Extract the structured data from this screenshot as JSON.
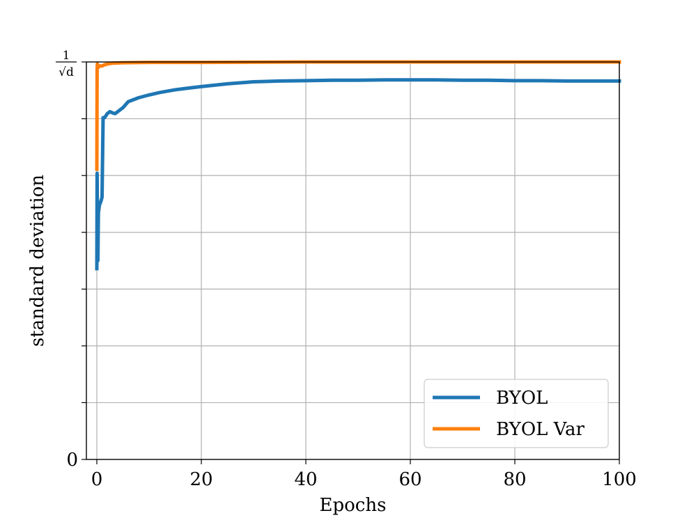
{
  "chart_data": {
    "type": "line",
    "xlabel": "Epochs",
    "ylabel": "standard deviation",
    "xlim": [
      -2,
      100
    ],
    "ylim": [
      0,
      1
    ],
    "grid": true,
    "legend_position": "lower-right",
    "x_ticks": [
      0,
      20,
      40,
      60,
      80,
      100
    ],
    "x_tick_labels": [
      "0",
      "20",
      "40",
      "60",
      "80",
      "100"
    ],
    "y_ticks": [
      0,
      0.142857,
      0.285714,
      0.428571,
      0.571429,
      0.714286,
      0.857143,
      1
    ],
    "y_tick_labels": [
      "0",
      "",
      "",
      "",
      "",
      "",
      "",
      "1/√d"
    ],
    "series": [
      {
        "name": "BYOL",
        "color": "#1f77b4",
        "x": [
          0,
          0.05,
          0.1,
          0.2,
          0.3,
          0.5,
          0.8,
          1.0,
          1.2,
          1.5,
          2,
          2.5,
          3,
          3.5,
          4,
          5,
          6,
          7,
          8,
          10,
          12,
          15,
          18,
          20,
          25,
          30,
          35,
          40,
          45,
          50,
          55,
          60,
          65,
          70,
          75,
          80,
          85,
          90,
          95,
          100
        ],
        "values": [
          0.48,
          0.72,
          0.64,
          0.5,
          0.62,
          0.64,
          0.65,
          0.66,
          0.86,
          0.86,
          0.87,
          0.875,
          0.872,
          0.87,
          0.875,
          0.885,
          0.9,
          0.905,
          0.91,
          0.917,
          0.923,
          0.93,
          0.935,
          0.938,
          0.945,
          0.95,
          0.952,
          0.953,
          0.954,
          0.954,
          0.955,
          0.955,
          0.955,
          0.954,
          0.954,
          0.953,
          0.953,
          0.952,
          0.952,
          0.952
        ]
      },
      {
        "name": "BYOL Var",
        "color": "#ff7f0e",
        "x": [
          0,
          0.05,
          0.1,
          0.2,
          0.5,
          1.0,
          1.5,
          2,
          3,
          5,
          10,
          20,
          40,
          60,
          80,
          100
        ],
        "values": [
          0.73,
          0.98,
          0.995,
          0.985,
          0.99,
          0.99,
          0.993,
          0.995,
          0.997,
          0.998,
          0.999,
          0.999,
          1.0,
          1.0,
          1.0,
          1.0
        ]
      }
    ]
  }
}
